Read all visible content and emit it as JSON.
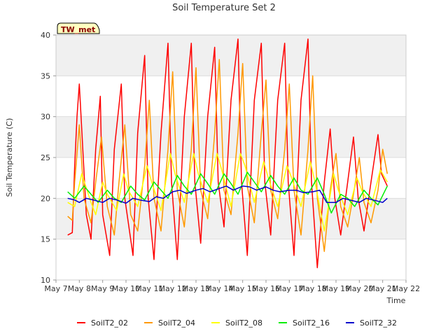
{
  "chart_data": {
    "type": "line",
    "title": "Soil Temperature Set 2",
    "xlabel": "Time",
    "ylabel": "Soil Temperature (C)",
    "ylim": [
      10,
      40
    ],
    "xlim": [
      "May 7",
      "May 22"
    ],
    "y_ticks": [
      "10",
      "15",
      "20",
      "25",
      "30",
      "35",
      "40"
    ],
    "x_ticks": [
      "May 7",
      "May 8",
      "May 9",
      "May 10",
      "May 11",
      "May 12",
      "May 13",
      "May 14",
      "May 15",
      "May 16",
      "May 17",
      "May 18",
      "May 19",
      "May 20",
      "May 21",
      "May 22"
    ],
    "badge": "TW_met",
    "legend_position": "bottom",
    "grid": true,
    "background_bands": "#f0f0f0",
    "series": [
      {
        "name": "SoilT2_02",
        "color": "#ff0000",
        "x": [
          7.5,
          7.7,
          7.8,
          7.9,
          8.0,
          8.3,
          8.5,
          8.7,
          8.9,
          9.0,
          9.3,
          9.5,
          9.8,
          9.95,
          10.3,
          10.5,
          10.8,
          10.95,
          11.2,
          11.5,
          11.8,
          11.95,
          12.2,
          12.5,
          12.8,
          12.95,
          13.2,
          13.5,
          13.8,
          13.95,
          14.2,
          14.5,
          14.8,
          14.95,
          15.2,
          15.5,
          15.8,
          15.95,
          16.2,
          16.5,
          16.8,
          16.95,
          17.2,
          17.5,
          17.8,
          17.95,
          18.2,
          18.5,
          18.75,
          18.95,
          19.2,
          19.5,
          19.75,
          19.95,
          20.2,
          20.5,
          20.8,
          20.95,
          21.2
        ],
        "y": [
          15.5,
          15.8,
          24.0,
          30.0,
          34.0,
          18.0,
          15.0,
          26.0,
          32.5,
          18.0,
          13.0,
          26.0,
          34.0,
          20.0,
          13.0,
          28.0,
          37.5,
          20.0,
          12.5,
          28.0,
          39.0,
          22.0,
          12.5,
          30.0,
          39.0,
          22.0,
          14.5,
          30.0,
          38.5,
          22.0,
          16.5,
          32.0,
          39.5,
          22.0,
          13.0,
          32.0,
          39.0,
          22.0,
          15.5,
          32.0,
          39.0,
          22.0,
          13.0,
          32.0,
          39.5,
          22.0,
          11.5,
          22.0,
          28.5,
          20.0,
          15.5,
          22.0,
          27.5,
          20.0,
          16.0,
          22.0,
          27.8,
          23.0,
          21.5
        ]
      },
      {
        "name": "SoilT2_04",
        "color": "#ff9900",
        "x": [
          7.5,
          7.7,
          7.8,
          8.0,
          8.2,
          8.5,
          8.7,
          8.95,
          9.2,
          9.5,
          9.7,
          9.95,
          10.2,
          10.5,
          10.8,
          11.0,
          11.2,
          11.5,
          11.8,
          12.0,
          12.2,
          12.5,
          12.8,
          13.0,
          13.2,
          13.5,
          13.8,
          14.0,
          14.2,
          14.5,
          14.8,
          15.0,
          15.2,
          15.5,
          15.8,
          16.0,
          16.2,
          16.5,
          16.8,
          17.0,
          17.2,
          17.5,
          17.8,
          18.0,
          18.2,
          18.5,
          18.75,
          19.0,
          19.2,
          19.5,
          19.75,
          20.0,
          20.2,
          20.5,
          20.8,
          21.0,
          21.2
        ],
        "y": [
          17.8,
          17.3,
          22.0,
          29.0,
          20.0,
          17.0,
          22.0,
          27.5,
          19.0,
          15.5,
          22.0,
          29.0,
          18.0,
          16.0,
          24.0,
          32.0,
          20.0,
          16.0,
          26.0,
          35.5,
          21.0,
          16.5,
          26.0,
          36.0,
          21.0,
          17.5,
          28.0,
          37.0,
          21.0,
          18.0,
          28.0,
          36.5,
          21.5,
          17.0,
          28.0,
          34.5,
          21.0,
          17.5,
          26.0,
          34.0,
          21.0,
          15.5,
          26.0,
          35.0,
          20.0,
          13.5,
          21.0,
          25.5,
          19.0,
          16.5,
          20.5,
          25.0,
          19.5,
          17.0,
          21.0,
          26.0,
          23.0
        ]
      },
      {
        "name": "SoilT2_08",
        "color": "#ffff00",
        "x": [
          7.5,
          7.8,
          8.1,
          8.5,
          8.7,
          9.0,
          9.2,
          9.6,
          9.9,
          10.1,
          10.5,
          10.9,
          11.1,
          11.5,
          11.9,
          12.1,
          12.5,
          12.9,
          13.1,
          13.5,
          13.9,
          14.1,
          14.5,
          14.9,
          15.1,
          15.5,
          15.9,
          16.1,
          16.5,
          16.9,
          17.1,
          17.5,
          17.9,
          18.1,
          18.5,
          18.9,
          19.1,
          19.5,
          19.9,
          20.1,
          20.5,
          20.9,
          21.1,
          21.2
        ],
        "y": [
          19.5,
          19.0,
          23.0,
          19.5,
          18.0,
          22.0,
          20.5,
          18.5,
          23.0,
          21.0,
          19.0,
          24.0,
          22.0,
          18.5,
          25.5,
          23.0,
          19.5,
          25.5,
          23.0,
          19.5,
          25.5,
          23.5,
          19.0,
          25.5,
          24.0,
          19.5,
          24.5,
          22.5,
          19.0,
          24.0,
          22.5,
          19.0,
          24.5,
          22.0,
          16.0,
          23.0,
          21.0,
          18.0,
          22.5,
          21.0,
          19.0,
          23.5,
          22.5,
          22.0
        ]
      },
      {
        "name": "SoilT2_16",
        "color": "#00ee00",
        "x": [
          7.5,
          7.8,
          8.2,
          8.5,
          8.8,
          9.2,
          9.5,
          9.8,
          10.2,
          10.5,
          10.8,
          11.2,
          11.5,
          11.8,
          12.2,
          12.5,
          12.8,
          13.2,
          13.5,
          13.8,
          14.2,
          14.5,
          14.8,
          15.2,
          15.5,
          15.8,
          16.2,
          16.5,
          16.8,
          17.2,
          17.5,
          17.8,
          18.2,
          18.5,
          18.8,
          19.2,
          19.5,
          19.8,
          20.2,
          20.5,
          20.8,
          21.2
        ],
        "y": [
          20.8,
          20.0,
          21.5,
          20.5,
          19.5,
          21.0,
          20.0,
          19.5,
          21.5,
          20.5,
          19.8,
          22.0,
          21.0,
          20.0,
          22.8,
          21.5,
          20.5,
          23.0,
          21.8,
          20.5,
          23.0,
          21.8,
          20.5,
          23.2,
          22.0,
          20.8,
          22.8,
          21.5,
          20.5,
          22.5,
          21.0,
          20.5,
          22.5,
          20.5,
          18.2,
          20.5,
          20.0,
          19.0,
          21.0,
          20.0,
          19.2,
          21.5
        ]
      },
      {
        "name": "SoilT2_32",
        "color": "#0000cc",
        "x": [
          7.5,
          7.8,
          8.0,
          8.3,
          8.6,
          9.0,
          9.3,
          9.6,
          10.0,
          10.3,
          10.6,
          11.0,
          11.3,
          11.6,
          12.0,
          12.3,
          12.6,
          13.0,
          13.3,
          13.6,
          14.0,
          14.3,
          14.6,
          15.0,
          15.3,
          15.6,
          16.0,
          16.3,
          16.6,
          17.0,
          17.3,
          17.6,
          18.0,
          18.3,
          18.6,
          19.0,
          19.3,
          19.6,
          20.0,
          20.3,
          20.6,
          21.0,
          21.2
        ],
        "y": [
          20.0,
          19.8,
          19.5,
          20.0,
          19.8,
          19.5,
          20.0,
          19.8,
          19.4,
          20.0,
          19.8,
          19.6,
          20.2,
          20.0,
          20.8,
          21.0,
          20.6,
          21.0,
          21.2,
          20.8,
          21.2,
          21.5,
          21.0,
          21.5,
          21.4,
          21.0,
          21.4,
          21.0,
          20.8,
          21.0,
          21.0,
          20.7,
          20.8,
          21.0,
          19.5,
          19.5,
          20.0,
          19.8,
          19.5,
          20.0,
          19.8,
          19.5,
          20.0
        ]
      }
    ]
  }
}
